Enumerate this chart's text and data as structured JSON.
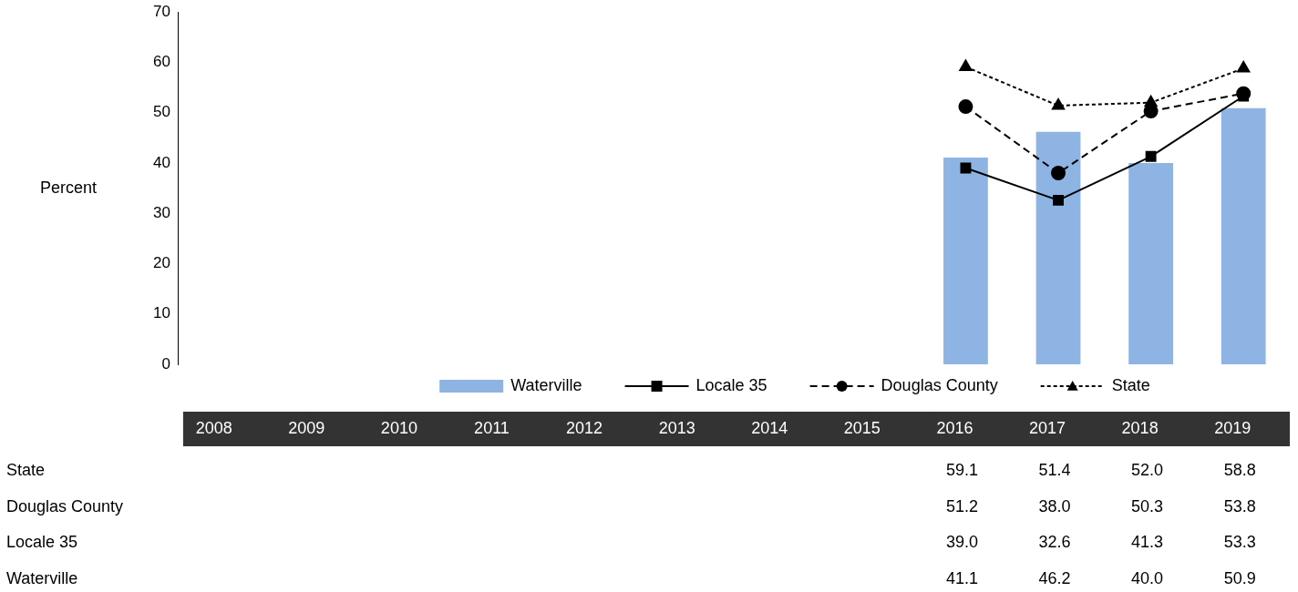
{
  "chart_data": {
    "type": "bar",
    "ylabel": "Percent",
    "categories": [
      "2008",
      "2009",
      "2010",
      "2011",
      "2012",
      "2013",
      "2014",
      "2015",
      "2016",
      "2017",
      "2018",
      "2019"
    ],
    "series": [
      {
        "name": "Waterville",
        "color": "#8eb4e3",
        "values": [
          null,
          null,
          null,
          null,
          null,
          null,
          null,
          null,
          41.1,
          46.2,
          40.0,
          50.9
        ],
        "value_labels": [
          null,
          null,
          null,
          null,
          null,
          null,
          null,
          null,
          "41.1",
          "46.2",
          "40.0",
          "50.9"
        ]
      },
      {
        "name": "Locale 35",
        "type": "line",
        "color": "#000000",
        "marker": "square",
        "line_style": "solid",
        "values": [
          null,
          null,
          null,
          null,
          null,
          null,
          null,
          null,
          39.0,
          32.6,
          41.3,
          53.3
        ],
        "value_labels": [
          null,
          null,
          null,
          null,
          null,
          null,
          null,
          null,
          "39.0",
          "32.6",
          "41.3",
          "53.3"
        ]
      },
      {
        "name": "Douglas County",
        "type": "line",
        "color": "#000000",
        "marker": "circle",
        "line_style": "dashed",
        "values": [
          null,
          null,
          null,
          null,
          null,
          null,
          null,
          null,
          51.2,
          38.0,
          50.3,
          53.8
        ],
        "value_labels": [
          null,
          null,
          null,
          null,
          null,
          null,
          null,
          null,
          "51.2",
          "38.0",
          "50.3",
          "53.8"
        ]
      },
      {
        "name": "State",
        "type": "line",
        "color": "#000000",
        "marker": "triangle",
        "line_style": "dotted",
        "values": [
          null,
          null,
          null,
          null,
          null,
          null,
          null,
          null,
          59.1,
          51.4,
          52.0,
          58.8
        ],
        "value_labels": [
          null,
          null,
          null,
          null,
          null,
          null,
          null,
          null,
          "59.1",
          "51.4",
          "52.0",
          "58.8"
        ]
      }
    ],
    "ylim": [
      0,
      70
    ],
    "yticks": [
      0,
      10,
      20,
      30,
      40,
      50,
      60,
      70
    ],
    "grid": false,
    "legend": "bottom"
  }
}
